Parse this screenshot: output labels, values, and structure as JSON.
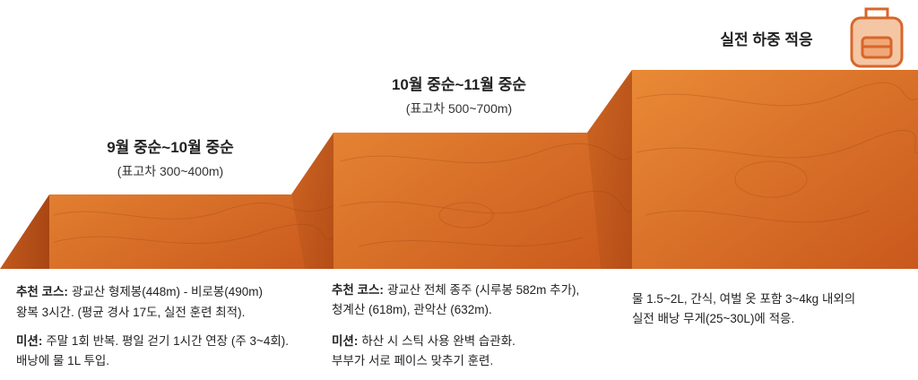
{
  "steps": [
    {
      "title": "9월 중순~10월 중순",
      "subtitle": "(표고차 300~400m)",
      "items": [
        {
          "label": "추천 코스:",
          "lines": [
            "광교산 형제봉(448m) - 비로봉(490m)",
            "왕복 3시간. (평균 경사 17도, 실전 훈련 최적)."
          ]
        },
        {
          "label": "미션:",
          "lines": [
            "주말 1회 반복. 평일 걷기 1시간 연장 (주 3~4회).",
            "배낭에 물 1L 투입."
          ]
        }
      ]
    },
    {
      "title": "10월 중순~11월 중순",
      "subtitle": "(표고차 500~700m)",
      "items": [
        {
          "label": "추천 코스:",
          "lines": [
            "광교산 전체 종주 (시루봉 582m 추가),",
            "청계산 (618m), 관악산 (632m)."
          ]
        },
        {
          "label": "미션:",
          "lines": [
            "하산 시 스틱 사용 완벽 습관화.",
            "부부가 서로 페이스 맞추기 훈련."
          ]
        }
      ]
    },
    {
      "title": "실전 하중 적응",
      "items": [
        {
          "lines": [
            "물 1.5~2L, 간식, 여벌 옷 포함 3~4kg 내외의",
            "실전 배낭 무게(25~30L)에 적응."
          ]
        }
      ]
    }
  ]
}
